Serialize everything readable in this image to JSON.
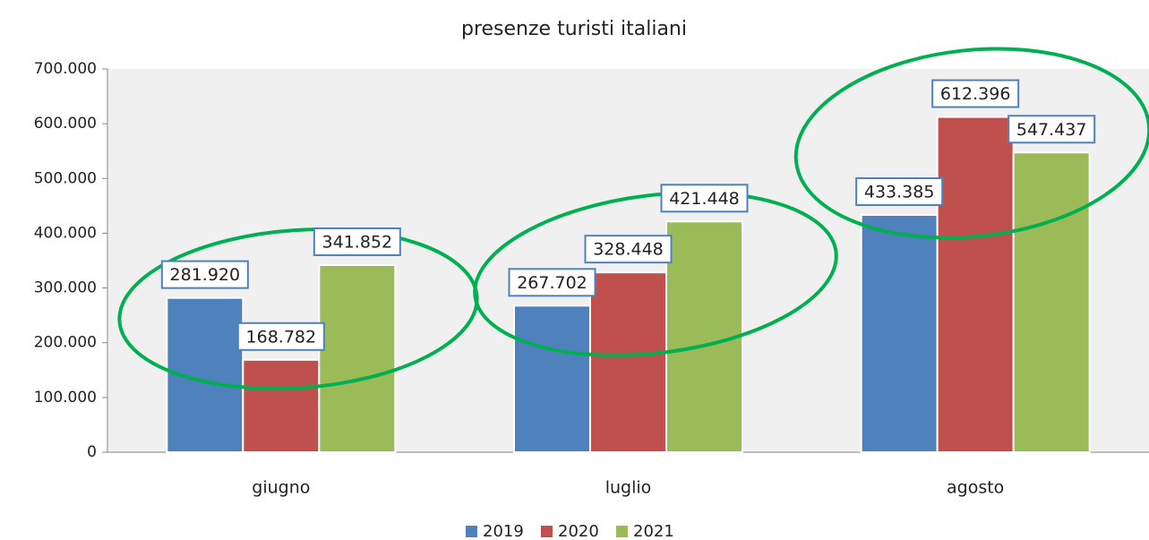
{
  "chart_data": {
    "type": "bar",
    "title": "presenze turisti italiani",
    "categories": [
      "giugno",
      "luglio",
      "agosto"
    ],
    "series": [
      {
        "name": "2019",
        "color": "#4f81bd",
        "values": [
          281920,
          267702,
          433385
        ],
        "value_labels": [
          "281.920",
          "267.702",
          "433.385"
        ]
      },
      {
        "name": "2020",
        "color": "#c0504d",
        "values": [
          168782,
          328448,
          612396
        ],
        "value_labels": [
          "168.782",
          "328.448",
          "612.396"
        ]
      },
      {
        "name": "2021",
        "color": "#9bbb59",
        "values": [
          341852,
          421448,
          547437
        ],
        "value_labels": [
          "341.852",
          "421.448",
          "547.437"
        ]
      }
    ],
    "ylim": [
      0,
      700000
    ],
    "yticks": [
      0,
      {
        "value": 100000,
        "label": "100.000"
      },
      {
        "value": 200000,
        "label": "200.000"
      },
      {
        "value": 300000,
        "label": "300.000"
      },
      {
        "value": 400000,
        "label": "400.000"
      },
      {
        "value": 500000,
        "label": "500.000"
      },
      {
        "value": 600000,
        "label": "600.000"
      },
      {
        "value": 700000,
        "label": "700.000"
      }
    ],
    "grid": false,
    "legend": "bottom"
  }
}
